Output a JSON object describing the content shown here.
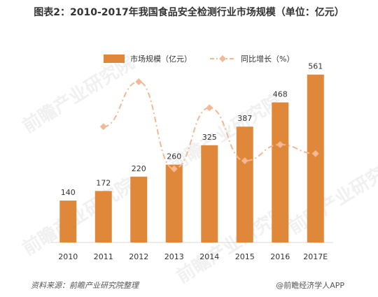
{
  "title": "图表2：2010-2017年我国食品安全检测行业市场规模（单位：亿元）",
  "footer": {
    "source": "资料来源：前瞻产业研究院整理",
    "app": "@前瞻经济学人APP"
  },
  "watermark": "前瞻产业研究院",
  "colors": {
    "bar": "#E0883A",
    "line": "#F4B896",
    "axis": "#D9D9D9",
    "label": "#333333"
  },
  "chart_data": {
    "type": "bar",
    "categories": [
      "2010",
      "2011",
      "2012",
      "2013",
      "2014",
      "2015",
      "2016",
      "2017E"
    ],
    "series": [
      {
        "name": "市场规模（亿元）",
        "type": "bar",
        "axis": "left",
        "values": [
          140,
          172,
          220,
          260,
          325,
          387,
          468,
          561
        ]
      },
      {
        "name": "同比增长（%）",
        "type": "line",
        "axis": "right",
        "style": "dash-dot",
        "values": [
          null,
          22.9,
          27.9,
          18.2,
          25.0,
          19.1,
          20.9,
          19.9
        ]
      }
    ],
    "ylim": [
      0,
      600
    ],
    "y2lim": [
      10,
      30
    ],
    "legend": "top-center",
    "grid": false
  }
}
